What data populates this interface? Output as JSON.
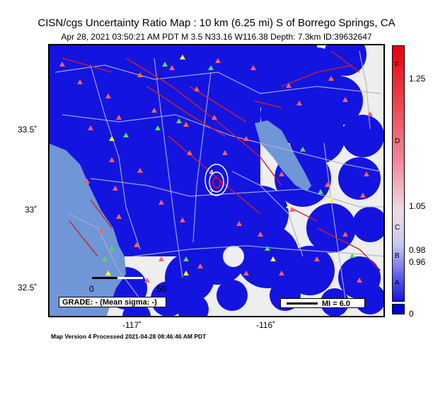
{
  "title": "CISN/cgs Uncertainty Ratio Map : 10 km (6.25 mi) S of Borrego Springs, CA",
  "subtitle": "Apr 28, 2021 03:50:21 AM PDT   M 3.5   N33.16 W116.38   Depth: 7.3km   ID:39632647",
  "footer": "Map Version 4 Processed 2021-04-28 08:46:46 AM PDT",
  "axes": {
    "lat_labels": [
      "33.5˚",
      "33˚",
      "32.5˚"
    ],
    "lon_labels": [
      "-117˚",
      "-116˚"
    ]
  },
  "colorbar": {
    "values": [
      "1.25",
      "1.05",
      "0.98",
      "0.96",
      "0"
    ],
    "grades": [
      "F",
      "D",
      "C",
      "B",
      "A"
    ],
    "colors": {
      "top": "#e8000b",
      "mid": "#f0c8d0",
      "bottom": "#0000cc",
      "zero": "#0000cc"
    }
  },
  "legend": {
    "grade_text": "GRADE: - (Mean sigma: -)",
    "mi_text": "MI = 6.0"
  },
  "scalebar": {
    "start": "0",
    "end": "50"
  },
  "contour_labels": [
    "4",
    "2"
  ],
  "colors": {
    "low_uncertainty": "#1414e0",
    "background": "#eeeeee",
    "water": "#6f96d6",
    "faults": "#cc2222",
    "roads": "#aaaacc"
  }
}
